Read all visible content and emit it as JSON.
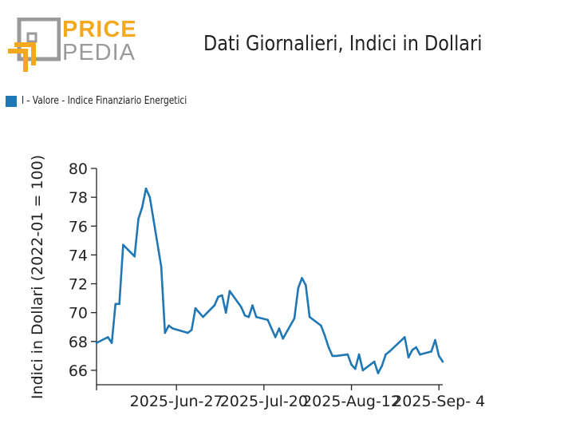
{
  "logo": {
    "line1": "PRICE",
    "line2": "PEDIA"
  },
  "chart_data": {
    "type": "line",
    "title": "Dati Giornalieri, Indici in Dollari",
    "ylabel": "Indici in Dollari (2022-01 = 100)",
    "xlabel": "",
    "ylim": [
      65,
      80
    ],
    "yticks": [
      66,
      68,
      70,
      72,
      74,
      76,
      78,
      80
    ],
    "xticks": [
      {
        "date": "2025-06-06",
        "label": ""
      },
      {
        "date": "2025-06-27",
        "label": "2025-Jun-27"
      },
      {
        "date": "2025-07-20",
        "label": "2025-Jul-20"
      },
      {
        "date": "2025-08-12",
        "label": "2025-Aug-12"
      },
      {
        "date": "2025-09-04",
        "label": "2025-Sep- 4"
      }
    ],
    "legend": "top-left",
    "grid": false,
    "series": [
      {
        "name": "I - Valore - Indice Finanziario Energetici",
        "color": "#1f77b4",
        "points": [
          [
            "2025-06-06",
            67.9
          ],
          [
            "2025-06-09",
            68.3
          ],
          [
            "2025-06-10",
            67.9
          ],
          [
            "2025-06-11",
            70.6
          ],
          [
            "2025-06-12",
            70.6
          ],
          [
            "2025-06-13",
            74.7
          ],
          [
            "2025-06-16",
            73.9
          ],
          [
            "2025-06-17",
            76.5
          ],
          [
            "2025-06-18",
            77.3
          ],
          [
            "2025-06-19",
            78.6
          ],
          [
            "2025-06-20",
            78.0
          ],
          [
            "2025-06-23",
            73.2
          ],
          [
            "2025-06-24",
            68.6
          ],
          [
            "2025-06-25",
            69.1
          ],
          [
            "2025-06-26",
            68.9
          ],
          [
            "2025-06-30",
            68.6
          ],
          [
            "2025-07-01",
            68.8
          ],
          [
            "2025-07-02",
            70.3
          ],
          [
            "2025-07-04",
            69.7
          ],
          [
            "2025-07-07",
            70.5
          ],
          [
            "2025-07-08",
            71.1
          ],
          [
            "2025-07-09",
            71.2
          ],
          [
            "2025-07-10",
            70.0
          ],
          [
            "2025-07-11",
            71.5
          ],
          [
            "2025-07-14",
            70.4
          ],
          [
            "2025-07-15",
            69.8
          ],
          [
            "2025-07-16",
            69.7
          ],
          [
            "2025-07-17",
            70.5
          ],
          [
            "2025-07-18",
            69.7
          ],
          [
            "2025-07-21",
            69.5
          ],
          [
            "2025-07-23",
            68.3
          ],
          [
            "2025-07-24",
            68.9
          ],
          [
            "2025-07-25",
            68.2
          ],
          [
            "2025-07-28",
            69.6
          ],
          [
            "2025-07-29",
            71.7
          ],
          [
            "2025-07-30",
            72.4
          ],
          [
            "2025-07-31",
            71.9
          ],
          [
            "2025-08-01",
            69.7
          ],
          [
            "2025-08-04",
            69.1
          ],
          [
            "2025-08-05",
            68.4
          ],
          [
            "2025-08-06",
            67.6
          ],
          [
            "2025-08-07",
            67.0
          ],
          [
            "2025-08-08",
            67.0
          ],
          [
            "2025-08-11",
            67.1
          ],
          [
            "2025-08-12",
            66.4
          ],
          [
            "2025-08-13",
            66.1
          ],
          [
            "2025-08-14",
            67.1
          ],
          [
            "2025-08-15",
            66.0
          ],
          [
            "2025-08-18",
            66.6
          ],
          [
            "2025-08-19",
            65.8
          ],
          [
            "2025-08-20",
            66.3
          ],
          [
            "2025-08-21",
            67.1
          ],
          [
            "2025-08-22",
            67.3
          ],
          [
            "2025-08-26",
            68.3
          ],
          [
            "2025-08-27",
            66.9
          ],
          [
            "2025-08-28",
            67.4
          ],
          [
            "2025-08-29",
            67.6
          ],
          [
            "2025-08-30",
            67.1
          ],
          [
            "2025-09-02",
            67.3
          ],
          [
            "2025-09-03",
            68.1
          ],
          [
            "2025-09-04",
            67.0
          ],
          [
            "2025-09-05",
            66.6
          ]
        ]
      }
    ]
  }
}
